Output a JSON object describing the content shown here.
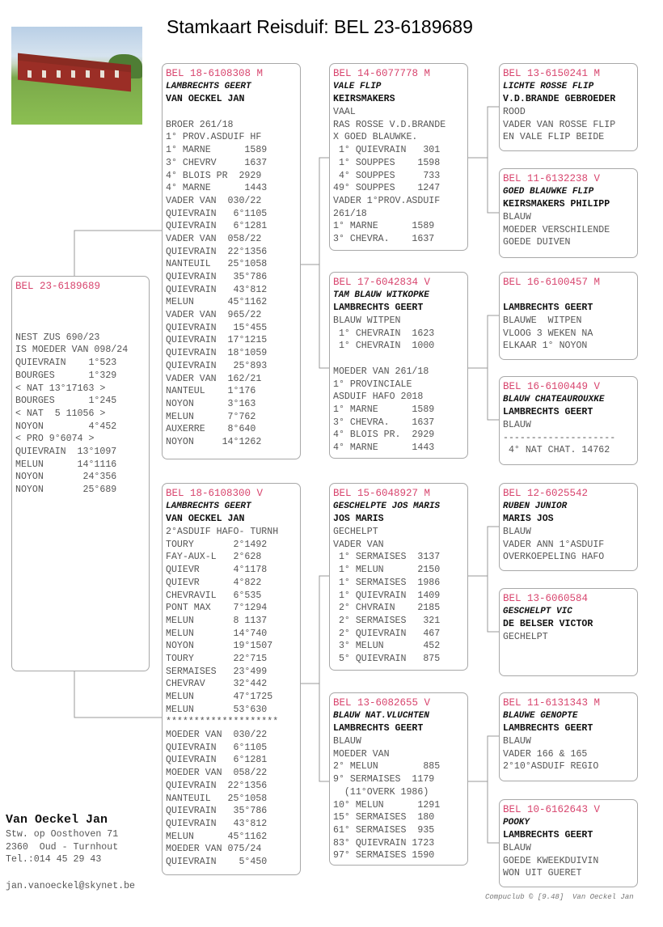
{
  "title": "Stamkaart Reisduif: BEL 23-6189689",
  "colors": {
    "ring": "#d8456e",
    "border": "#a8a8a8",
    "text": "#555555"
  },
  "pedigree": {
    "subject": {
      "ring": "BEL 23-6189689",
      "lines": [
        "",
        "",
        "",
        "NEST ZUS 690/23",
        "IS MOEDER VAN 098/24",
        "QUIEVRAIN    1°523",
        "BOURGES      1°329",
        "< NAT 13°17163 >",
        "BOURGES      1°245",
        "< NAT  5 11056 >",
        "NOYON        4°452",
        "< PRO 9°6074 >",
        "QUIEVRAIN  13°1097",
        "MELUN      14°1116",
        "NOYON       24°356",
        "NOYON       25°689"
      ]
    },
    "father": {
      "ring": "BEL 18-6108308 M",
      "name": "LAMBRECHTS GEERT",
      "owner": "VAN OECKEL JAN",
      "lines": [
        "",
        "BROER 261/18",
        "1° PROV.ASDUIF HF",
        "1° MARNE      1589",
        "3° CHEVRV     1637",
        "4° BLOIS PR  2929",
        "4° MARNE      1443",
        "VADER VAN  030/22",
        "QUIEVRAIN   6°1105",
        "QUIEVRAIN   6°1281",
        "VADER VAN  058/22",
        "QUIEVRAIN  22°1356",
        "NANTEUIL   25°1058",
        "QUIEVRAIN   35°786",
        "QUIEVRAIN   43°812",
        "MELUN      45°1162",
        "VADER VAN  965/22",
        "QUIEVRAIN   15°455",
        "QUIEVRAIN  17°1215",
        "QUIEVRAIN  18°1059",
        "QUIEVRAIN   25°893",
        "VADER VAN  162/21",
        "NANTEUL    1°176",
        "NOYON      3°163",
        "MELUN      7°762",
        "AUXERRE    8°640",
        "NOYON     14°1262"
      ]
    },
    "mother": {
      "ring": "BEL 18-6108300 V",
      "name": "LAMBRECHTS GEERT",
      "owner": "VAN OECKEL JAN",
      "lines": [
        "2°ASDUIF HAFO- TURNH",
        "TOURY       2°1492",
        "FAY-AUX-L   2°628",
        "QUIEVR      4°1178",
        "QUIEVR      4°822",
        "CHEVRAVIL   6°535",
        "PONT MAX    7°1294",
        "MELUN       8 1137",
        "MELUN       14°740",
        "NOYON       19°1507",
        "TOURY       22°715",
        "SERMAISES   23°499",
        "CHEVRAV     32°442",
        "MELUN       47°1725",
        "MELUN       53°630",
        "********************",
        "MOEDER VAN  030/22",
        "QUIEVRAIN   6°1105",
        "QUIEVRAIN   6°1281",
        "MOEDER VAN  058/22",
        "QUIEVRAIN  22°1356",
        "NANTEUIL   25°1058",
        "QUIEVRAIN   35°786",
        "QUIEVRAIN   43°812",
        "MELUN      45°1162",
        "MOEDER VAN 075/24",
        "QUIEVRAIN    5°450"
      ]
    },
    "ff": {
      "ring": "BEL 14-6077778 M",
      "name": "VALE FLIP",
      "owner": "KEIRSMAKERS",
      "lines": [
        "VAAL",
        "RAS ROSSE V.D.BRANDE",
        "X GOED BLAUWKE.",
        " 1° QUIEVRAIN   301",
        " 1° SOUPPES    1598",
        " 4° SOUPPES     733",
        "49° SOUPPES    1247",
        "VADER 1°PROV.ASDUIF",
        "261/18",
        "1° MARNE      1589",
        "3° CHEVRA.    1637"
      ]
    },
    "fm": {
      "ring": "BEL 17-6042834 V",
      "name": "TAM BLAUW WITKOPKE",
      "owner": "LAMBRECHTS GEERT",
      "lines": [
        "BLAUW WITPEN",
        " 1° CHEVRAIN  1623",
        " 1° CHEVRAIN  1000",
        "",
        "MOEDER VAN 261/18",
        "1° PROVINCIALE",
        "ASDUIF HAFO 2018",
        "1° MARNE      1589",
        "3° CHEVRA.    1637",
        "4° BLOIS PR.  2929",
        "4° MARNE      1443"
      ]
    },
    "mf": {
      "ring": "BEL 15-6048927 M",
      "name": "GESCHELPTE JOS MARIS",
      "owner": "JOS MARIS",
      "lines": [
        "GECHELPT",
        "VADER VAN",
        " 1° SERMAISES  3137",
        " 1° MELUN      2150",
        " 1° SERMAISES  1986",
        " 1° QUIEVRAIN  1409",
        " 2° CHVRAIN    2185",
        " 2° SERMAISES   321",
        " 2° QUIEVRAIN   467",
        " 3° MELUN       452",
        " 5° QUIEVRAIN   875"
      ]
    },
    "mm": {
      "ring": "BEL 13-6082655 V",
      "name": "BLAUW NAT.VLUCHTEN",
      "owner": "LAMBRECHTS GEERT",
      "lines": [
        "BLAUW",
        "MOEDER VAN",
        "2° MELUN        885",
        "9° SERMAISES  1179",
        "  (11°OVERK 1986)",
        "10° MELUN      1291",
        "15° SERMAISES  180",
        "61° SERMAISES  935",
        "83° QUIEVRAIN 1723",
        "97° SERMAISES 1590"
      ]
    },
    "fff": {
      "ring": "BEL 13-6150241 M",
      "name": "LICHTE ROSSE FLIP",
      "owner": "V.D.BRANDE GEBROEDER",
      "lines": [
        "ROOD",
        "VADER VAN ROSSE FLIP",
        "EN VALE FLIP BEIDE"
      ]
    },
    "ffm": {
      "ring": "BEL 11-6132238 V",
      "name": "GOED BLAUWKE FLIP",
      "owner": "KEIRSMAKERS PHILIPP",
      "lines": [
        "BLAUW",
        "MOEDER VERSCHILENDE",
        "GOEDE DUIVEN"
      ]
    },
    "fmf": {
      "ring": "BEL 16-6100457 M",
      "name": "",
      "owner": "LAMBRECHTS GEERT",
      "lines": [
        "BLAUWE  WITPEN",
        "VLOOG 3 WEKEN NA",
        "ELKAAR 1° NOYON"
      ]
    },
    "fmm": {
      "ring": "BEL 16-6100449 V",
      "name": "BLAUW CHATEAUROUXKE",
      "owner": "LAMBRECHTS GEERT",
      "lines": [
        "BLAUW",
        "--------------------",
        " 4° NAT CHAT. 14762"
      ]
    },
    "mff": {
      "ring": "BEL 12-6025542",
      "name": "RUBEN JUNIOR",
      "owner": "MARIS JOS",
      "lines": [
        "BLAUW",
        "VADER ANN 1°ASDUIF",
        "OVERKOEPELING HAFO"
      ]
    },
    "mfm": {
      "ring": "BEL 13-6060584",
      "name": "GESCHELPT VIC",
      "owner": "DE BELSER VICTOR",
      "lines": [
        "GECHELPT"
      ]
    },
    "mmf": {
      "ring": "BEL 11-6131343 M",
      "name": "BLAUWE GENOPTE",
      "owner": "LAMBRECHTS GEERT",
      "lines": [
        "BLAUW",
        "VADER 166 & 165",
        "2°10°ASDUIF REGIO"
      ]
    },
    "mmm": {
      "ring": "BEL 10-6162643 V",
      "name": "POOKY",
      "owner": "LAMBRECHTS GEERT",
      "lines": [
        "BLAUW",
        "GOEDE KWEEKDUIVIN",
        "WON UIT GUERET"
      ]
    }
  },
  "owner": {
    "name": "Van Oeckel Jan",
    "address": [
      "Stw. op Oosthoven 71",
      "2360  Oud - Turnhout",
      "Tel.:014 45 29 43"
    ],
    "email": "jan.vanoeckel@skynet.be"
  },
  "footer": "Compuclub © [9.48]  Van Oeckel Jan"
}
